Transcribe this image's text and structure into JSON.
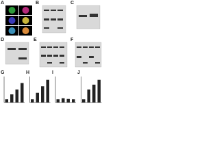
{
  "panels": {
    "letters": [
      "A",
      "B",
      "C",
      "D",
      "E",
      "F",
      "G",
      "H",
      "I",
      "J"
    ],
    "bars": [
      {
        "values": [
          1,
          2.5,
          4,
          6
        ],
        "ylim": [
          0,
          8
        ],
        "color": "#222222"
      },
      {
        "values": [
          1,
          3,
          5,
          7
        ],
        "ylim": [
          0,
          8
        ],
        "color": "#222222"
      },
      {
        "values": [
          1,
          1.3,
          1.1,
          1
        ],
        "ylim": [
          0,
          8
        ],
        "color": "#222222"
      },
      {
        "values": [
          1,
          4,
          5.5,
          7
        ],
        "ylim": [
          0,
          8
        ],
        "color": "#222222"
      }
    ]
  }
}
